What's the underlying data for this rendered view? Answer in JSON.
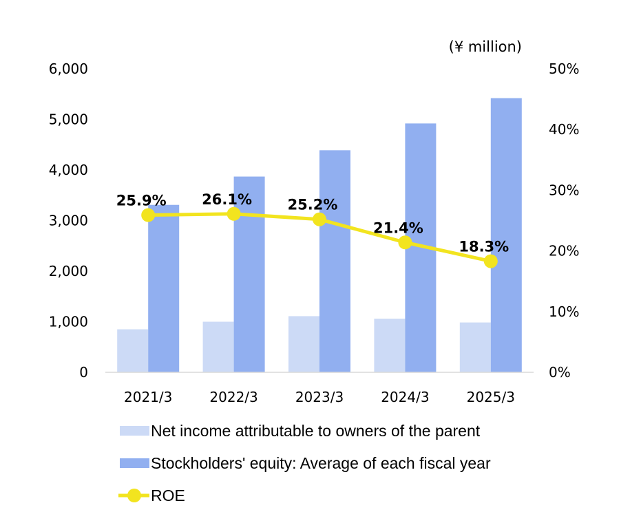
{
  "chart_data": {
    "type": "bar+line",
    "unit_label": "(¥ million)",
    "categories": [
      "2021/3",
      "2022/3",
      "2023/3",
      "2024/3",
      "2025/3"
    ],
    "series": [
      {
        "name": "Net income attributable to owners of the parent",
        "kind": "bar",
        "axis": "left",
        "color": "#ccdaf6",
        "values": [
          850,
          1000,
          1110,
          1060,
          985
        ]
      },
      {
        "name": "Stockholders' equity: Average of each fiscal year",
        "kind": "bar",
        "axis": "left",
        "color": "#91aff0",
        "values": [
          3310,
          3870,
          4390,
          4920,
          5420
        ]
      },
      {
        "name": "ROE",
        "kind": "line",
        "axis": "right",
        "color": "#f2e41f",
        "values": [
          25.9,
          26.1,
          25.2,
          21.4,
          18.3
        ],
        "labels": [
          "25.9%",
          "26.1%",
          "25.2%",
          "21.4%",
          "18.3%"
        ]
      }
    ],
    "left_axis": {
      "ylim": [
        0,
        6000
      ],
      "ticks": [
        "0",
        "1,000",
        "2,000",
        "3,000",
        "4,000",
        "5,000",
        "6,000"
      ]
    },
    "right_axis": {
      "ylim": [
        0,
        50
      ],
      "ticks": [
        "0%",
        "10%",
        "20%",
        "30%",
        "40%",
        "50%"
      ]
    },
    "grid": false,
    "legend_position": "bottom"
  }
}
